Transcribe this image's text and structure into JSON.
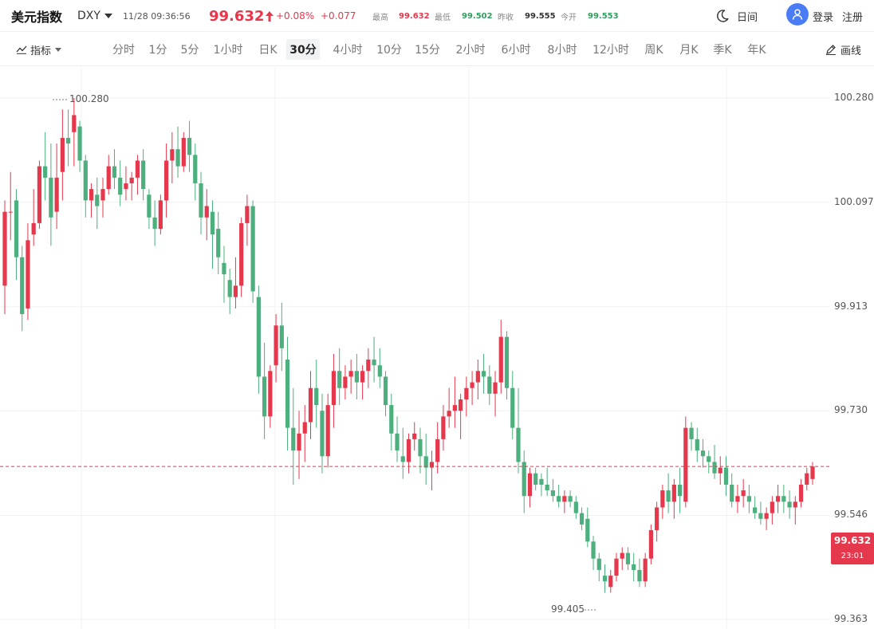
{
  "header": {
    "title": "美元指数",
    "code": "DXY",
    "datetime": "11/28 09:36:56",
    "price": "99.632",
    "change_pct": "+0.08%",
    "change_abs": "+0.077",
    "stats": [
      {
        "label": "最高",
        "value": "99.632",
        "color": "#e5384d"
      },
      {
        "label": "最低",
        "value": "99.502",
        "color": "#2e9d5f"
      },
      {
        "label": "昨收",
        "value": "99.555",
        "color": "#333333"
      },
      {
        "label": "今开",
        "value": "99.553",
        "color": "#2e9d5f"
      }
    ],
    "day_night": "日间",
    "login": "登录",
    "register": "注册"
  },
  "toolbar": {
    "indicator": "指标",
    "periods": [
      "分时",
      "1分",
      "5分",
      "1小时",
      "日K",
      "30分",
      "4小时",
      "10分",
      "15分",
      "2小时",
      "6小时",
      "8小时",
      "12小时",
      "周K",
      "月K",
      "季K",
      "年K"
    ],
    "active_period": "30分",
    "draw": "画线"
  },
  "colors": {
    "up": "#e5384d",
    "down": "#4caf7d",
    "accent": "#4a7cf5"
  },
  "icons": {
    "theme": "moon-icon",
    "user": "user-icon",
    "indicator": "trend-icon",
    "draw": "pencil-icon"
  },
  "chart_data": {
    "type": "candlestick",
    "y_ticks": [
      "100.280",
      "100.097",
      "99.913",
      "99.730",
      "99.546",
      "99.363"
    ],
    "ylim": [
      99.363,
      100.28
    ],
    "high_label": "100.280",
    "low_label": "99.405",
    "last_price": "99.632",
    "countdown": "23:01",
    "candles": [
      [
        99.95,
        100.1,
        99.9,
        100.08
      ],
      [
        100.08,
        100.15,
        100.03,
        100.08
      ],
      [
        100.1,
        100.12,
        99.96,
        100.0
      ],
      [
        100.0,
        100.02,
        99.87,
        99.9
      ],
      [
        99.91,
        100.06,
        99.89,
        100.03
      ],
      [
        100.04,
        100.12,
        100.02,
        100.06
      ],
      [
        100.06,
        100.17,
        100.05,
        100.16
      ],
      [
        100.16,
        100.22,
        100.1,
        100.14
      ],
      [
        100.14,
        100.2,
        100.02,
        100.07
      ],
      [
        100.08,
        100.2,
        100.05,
        100.14
      ],
      [
        100.15,
        100.26,
        100.1,
        100.21
      ],
      [
        100.21,
        100.26,
        100.16,
        100.2
      ],
      [
        100.22,
        100.28,
        100.16,
        100.25
      ],
      [
        100.23,
        100.24,
        100.15,
        100.17
      ],
      [
        100.17,
        100.18,
        100.07,
        100.1
      ],
      [
        100.1,
        100.13,
        100.07,
        100.12
      ],
      [
        100.11,
        100.14,
        100.05,
        100.09
      ],
      [
        100.1,
        100.14,
        100.07,
        100.12
      ],
      [
        100.12,
        100.18,
        100.11,
        100.16
      ],
      [
        100.16,
        100.19,
        100.12,
        100.14
      ],
      [
        100.14,
        100.17,
        100.09,
        100.11
      ],
      [
        100.12,
        100.16,
        100.1,
        100.13
      ],
      [
        100.13,
        100.15,
        100.1,
        100.14
      ],
      [
        100.14,
        100.18,
        100.11,
        100.17
      ],
      [
        100.17,
        100.19,
        100.1,
        100.12
      ],
      [
        100.11,
        100.12,
        100.05,
        100.07
      ],
      [
        100.07,
        100.1,
        100.02,
        100.05
      ],
      [
        100.05,
        100.11,
        100.04,
        100.1
      ],
      [
        100.1,
        100.2,
        100.07,
        100.17
      ],
      [
        100.17,
        100.22,
        100.13,
        100.19
      ],
      [
        100.19,
        100.23,
        100.14,
        100.16
      ],
      [
        100.16,
        100.22,
        100.15,
        100.21
      ],
      [
        100.21,
        100.24,
        100.15,
        100.18
      ],
      [
        100.18,
        100.2,
        100.1,
        100.13
      ],
      [
        100.13,
        100.15,
        100.04,
        100.07
      ],
      [
        100.07,
        100.12,
        100.03,
        100.09
      ],
      [
        100.08,
        100.1,
        99.98,
        100.04
      ],
      [
        100.05,
        100.08,
        99.97,
        100.0
      ],
      [
        99.99,
        100.02,
        99.92,
        99.97
      ],
      [
        99.96,
        99.98,
        99.9,
        99.93
      ],
      [
        99.93,
        100.0,
        99.91,
        99.95
      ],
      [
        99.95,
        100.07,
        99.93,
        100.06
      ],
      [
        100.06,
        100.11,
        100.02,
        100.09
      ],
      [
        100.09,
        100.1,
        99.92,
        99.94
      ],
      [
        99.93,
        99.95,
        99.76,
        99.79
      ],
      [
        99.79,
        99.85,
        99.68,
        99.72
      ],
      [
        99.72,
        99.81,
        99.7,
        99.8
      ],
      [
        99.81,
        99.9,
        99.78,
        99.88
      ],
      [
        99.88,
        99.92,
        99.8,
        99.84
      ],
      [
        99.82,
        99.86,
        99.66,
        99.7
      ],
      [
        99.7,
        99.77,
        99.6,
        99.66
      ],
      [
        99.66,
        99.73,
        99.61,
        99.69
      ],
      [
        99.69,
        99.74,
        99.64,
        99.71
      ],
      [
        99.71,
        99.8,
        99.68,
        99.77
      ],
      [
        99.77,
        99.82,
        99.7,
        99.74
      ],
      [
        99.73,
        99.76,
        99.62,
        99.65
      ],
      [
        99.65,
        99.76,
        99.63,
        99.74
      ],
      [
        99.74,
        99.83,
        99.7,
        99.8
      ],
      [
        99.8,
        99.84,
        99.74,
        99.77
      ],
      [
        99.77,
        99.81,
        99.75,
        99.79
      ],
      [
        99.79,
        99.82,
        99.76,
        99.8
      ],
      [
        99.8,
        99.83,
        99.75,
        99.78
      ],
      [
        99.78,
        99.81,
        99.75,
        99.8
      ],
      [
        99.8,
        99.84,
        99.77,
        99.82
      ],
      [
        99.82,
        99.86,
        99.78,
        99.81
      ],
      [
        99.81,
        99.84,
        99.77,
        99.79
      ],
      [
        99.79,
        99.8,
        99.72,
        99.74
      ],
      [
        99.74,
        99.76,
        99.66,
        99.69
      ],
      [
        99.69,
        99.72,
        99.64,
        99.66
      ],
      [
        99.65,
        99.7,
        99.61,
        99.64
      ],
      [
        99.64,
        99.69,
        99.62,
        99.68
      ],
      [
        99.68,
        99.71,
        99.66,
        99.69
      ],
      [
        99.68,
        99.7,
        99.62,
        99.65
      ],
      [
        99.65,
        99.69,
        99.6,
        99.63
      ],
      [
        99.63,
        99.66,
        99.59,
        99.64
      ],
      [
        99.64,
        99.71,
        99.62,
        99.68
      ],
      [
        99.68,
        99.74,
        99.66,
        99.72
      ],
      [
        99.72,
        99.77,
        99.7,
        99.73
      ],
      [
        99.73,
        99.79,
        99.7,
        99.74
      ],
      [
        99.73,
        99.76,
        99.68,
        99.75
      ],
      [
        99.75,
        99.79,
        99.72,
        99.77
      ],
      [
        99.77,
        99.8,
        99.74,
        99.78
      ],
      [
        99.78,
        99.82,
        99.75,
        99.8
      ],
      [
        99.8,
        99.83,
        99.76,
        99.79
      ],
      [
        99.79,
        99.81,
        99.74,
        99.76
      ],
      [
        99.76,
        99.8,
        99.72,
        99.78
      ],
      [
        99.78,
        99.89,
        99.76,
        99.86
      ],
      [
        99.86,
        99.87,
        99.75,
        99.77
      ],
      [
        99.77,
        99.8,
        99.68,
        99.7
      ],
      [
        99.7,
        99.77,
        99.62,
        99.64
      ],
      [
        99.64,
        99.66,
        99.55,
        99.58
      ],
      [
        99.58,
        99.63,
        99.56,
        99.62
      ],
      [
        99.62,
        99.63,
        99.59,
        99.6
      ],
      [
        99.61,
        99.62,
        99.58,
        99.6
      ],
      [
        99.6,
        99.63,
        99.58,
        99.59
      ],
      [
        99.59,
        99.61,
        99.57,
        99.58
      ],
      [
        99.58,
        99.6,
        99.56,
        99.57
      ],
      [
        99.57,
        99.59,
        99.55,
        99.58
      ],
      [
        99.58,
        99.59,
        99.56,
        99.57
      ],
      [
        99.57,
        99.58,
        99.54,
        99.55
      ],
      [
        99.55,
        99.56,
        99.52,
        99.53
      ],
      [
        99.54,
        99.56,
        99.49,
        99.5
      ],
      [
        99.5,
        99.51,
        99.45,
        99.47
      ],
      [
        99.47,
        99.48,
        99.43,
        99.45
      ],
      [
        99.44,
        99.46,
        99.41,
        99.43
      ],
      [
        99.42,
        99.45,
        99.41,
        99.44
      ],
      [
        99.44,
        99.48,
        99.43,
        99.47
      ],
      [
        99.47,
        99.49,
        99.45,
        99.48
      ],
      [
        99.48,
        99.49,
        99.45,
        99.46
      ],
      [
        99.46,
        99.48,
        99.43,
        99.45
      ],
      [
        99.45,
        99.47,
        99.42,
        99.43
      ],
      [
        99.43,
        99.48,
        99.42,
        99.47
      ],
      [
        99.47,
        99.53,
        99.46,
        99.52
      ],
      [
        99.52,
        99.57,
        99.5,
        99.56
      ],
      [
        99.56,
        99.6,
        99.54,
        99.59
      ],
      [
        99.59,
        99.62,
        99.55,
        99.57
      ],
      [
        99.57,
        99.61,
        99.54,
        99.6
      ],
      [
        99.6,
        99.63,
        99.55,
        99.58
      ],
      [
        99.57,
        99.72,
        99.56,
        99.7
      ],
      [
        99.7,
        99.71,
        99.66,
        99.68
      ],
      [
        99.68,
        99.7,
        99.64,
        99.66
      ],
      [
        99.66,
        99.68,
        99.63,
        99.65
      ],
      [
        99.65,
        99.66,
        99.62,
        99.64
      ],
      [
        99.64,
        99.67,
        99.61,
        99.62
      ],
      [
        99.62,
        99.65,
        99.6,
        99.63
      ],
      [
        99.63,
        99.65,
        99.58,
        99.6
      ],
      [
        99.6,
        99.62,
        99.56,
        99.57
      ],
      [
        99.57,
        99.6,
        99.55,
        99.58
      ],
      [
        99.58,
        99.61,
        99.56,
        99.59
      ],
      [
        99.58,
        99.6,
        99.55,
        99.57
      ],
      [
        99.56,
        99.58,
        99.54,
        99.55
      ],
      [
        99.55,
        99.57,
        99.53,
        99.54
      ],
      [
        99.54,
        99.56,
        99.52,
        99.55
      ],
      [
        99.55,
        99.58,
        99.53,
        99.57
      ],
      [
        99.57,
        99.6,
        99.55,
        99.58
      ],
      [
        99.58,
        99.6,
        99.55,
        99.57
      ],
      [
        99.57,
        99.59,
        99.54,
        99.56
      ],
      [
        99.56,
        99.58,
        99.53,
        99.57
      ],
      [
        99.57,
        99.61,
        99.56,
        99.6
      ],
      [
        99.6,
        99.63,
        99.59,
        99.62
      ],
      [
        99.61,
        99.64,
        99.6,
        99.632
      ]
    ]
  }
}
